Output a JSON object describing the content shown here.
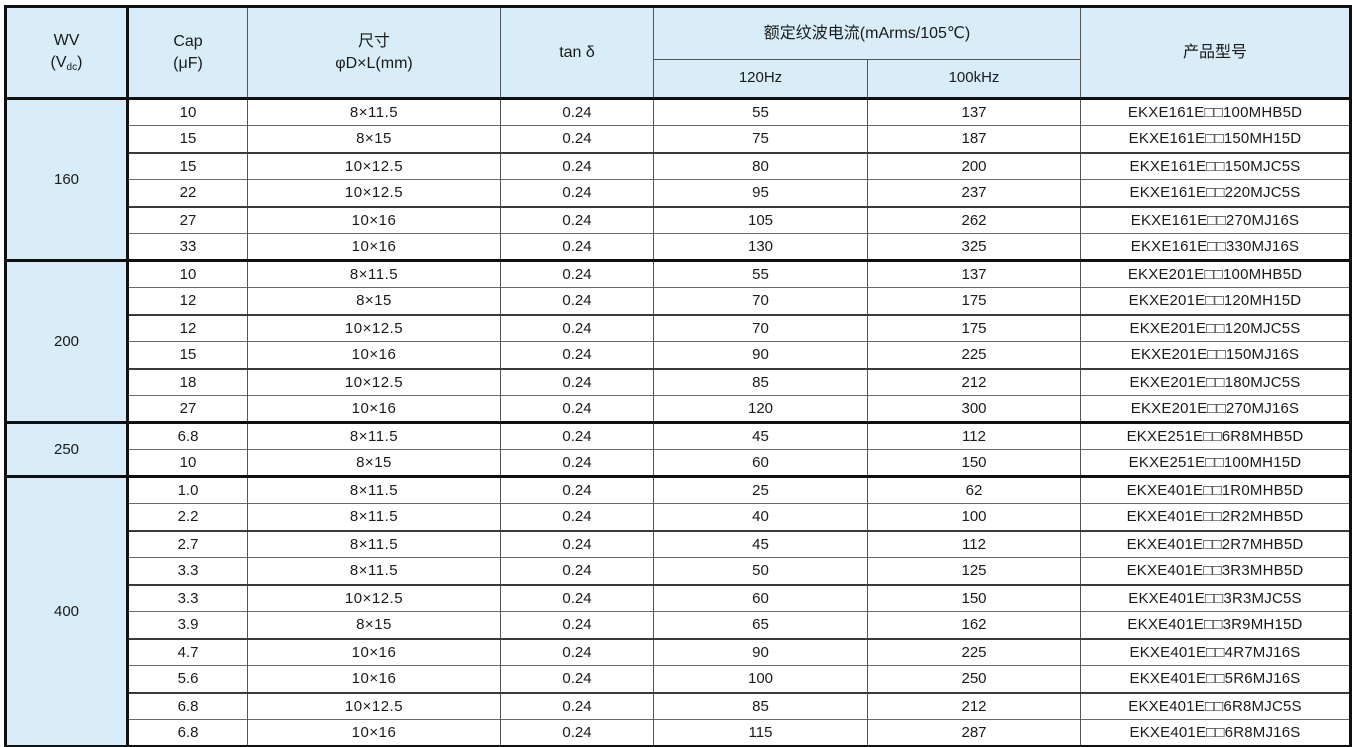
{
  "header": {
    "wv_title": "WV",
    "wv_unit_open": "(V",
    "wv_unit_sub": "dc",
    "wv_unit_close": ")",
    "cap_title": "Cap",
    "cap_unit": "(μF)",
    "size_title": "尺寸",
    "size_unit": "φD×L(mm)",
    "tan_delta": "tan δ",
    "ripple_title": "额定纹波电流(mArms/105℃)",
    "freq_120": "120Hz",
    "freq_100k": "100kHz",
    "model_title": "产品型号"
  },
  "columns": [
    "WV (Vdc)",
    "Cap (μF)",
    "尺寸 φD×L(mm)",
    "tan δ",
    "120Hz",
    "100kHz",
    "产品型号"
  ],
  "groups": [
    {
      "wv": "160",
      "rows": [
        [
          "10",
          "8×11.5",
          "0.24",
          "55",
          "137",
          "EKXE161E□□100MHB5D"
        ],
        [
          "15",
          "8×15",
          "0.24",
          "75",
          "187",
          "EKXE161E□□150MH15D"
        ],
        [
          "15",
          "10×12.5",
          "0.24",
          "80",
          "200",
          "EKXE161E□□150MJC5S"
        ],
        [
          "22",
          "10×12.5",
          "0.24",
          "95",
          "237",
          "EKXE161E□□220MJC5S"
        ],
        [
          "27",
          "10×16",
          "0.24",
          "105",
          "262",
          "EKXE161E□□270MJ16S"
        ],
        [
          "33",
          "10×16",
          "0.24",
          "130",
          "325",
          "EKXE161E□□330MJ16S"
        ]
      ]
    },
    {
      "wv": "200",
      "rows": [
        [
          "10",
          "8×11.5",
          "0.24",
          "55",
          "137",
          "EKXE201E□□100MHB5D"
        ],
        [
          "12",
          "8×15",
          "0.24",
          "70",
          "175",
          "EKXE201E□□120MH15D"
        ],
        [
          "12",
          "10×12.5",
          "0.24",
          "70",
          "175",
          "EKXE201E□□120MJC5S"
        ],
        [
          "15",
          "10×16",
          "0.24",
          "90",
          "225",
          "EKXE201E□□150MJ16S"
        ],
        [
          "18",
          "10×12.5",
          "0.24",
          "85",
          "212",
          "EKXE201E□□180MJC5S"
        ],
        [
          "27",
          "10×16",
          "0.24",
          "120",
          "300",
          "EKXE201E□□270MJ16S"
        ]
      ]
    },
    {
      "wv": "250",
      "rows": [
        [
          "6.8",
          "8×11.5",
          "0.24",
          "45",
          "112",
          "EKXE251E□□6R8MHB5D"
        ],
        [
          "10",
          "8×15",
          "0.24",
          "60",
          "150",
          "EKXE251E□□100MH15D"
        ]
      ]
    },
    {
      "wv": "400",
      "rows": [
        [
          "1.0",
          "8×11.5",
          "0.24",
          "25",
          "62",
          "EKXE401E□□1R0MHB5D"
        ],
        [
          "2.2",
          "8×11.5",
          "0.24",
          "40",
          "100",
          "EKXE401E□□2R2MHB5D"
        ],
        [
          "2.7",
          "8×11.5",
          "0.24",
          "45",
          "112",
          "EKXE401E□□2R7MHB5D"
        ],
        [
          "3.3",
          "8×11.5",
          "0.24",
          "50",
          "125",
          "EKXE401E□□3R3MHB5D"
        ],
        [
          "3.3",
          "10×12.5",
          "0.24",
          "60",
          "150",
          "EKXE401E□□3R3MJC5S"
        ],
        [
          "3.9",
          "8×15",
          "0.24",
          "65",
          "162",
          "EKXE401E□□3R9MH15D"
        ],
        [
          "4.7",
          "10×16",
          "0.24",
          "90",
          "225",
          "EKXE401E□□4R7MJ16S"
        ],
        [
          "5.6",
          "10×16",
          "0.24",
          "100",
          "250",
          "EKXE401E□□5R6MJ16S"
        ],
        [
          "6.8",
          "10×12.5",
          "0.24",
          "85",
          "212",
          "EKXE401E□□6R8MJC5S"
        ],
        [
          "6.8",
          "10×16",
          "0.24",
          "115",
          "287",
          "EKXE401E□□6R8MJ16S"
        ]
      ]
    }
  ],
  "colors": {
    "header_bg": "#d8edf7",
    "row_bg": "#ffffff",
    "border_dark": "#101010",
    "border_light": "#555555",
    "text": "#1a1a1a"
  }
}
